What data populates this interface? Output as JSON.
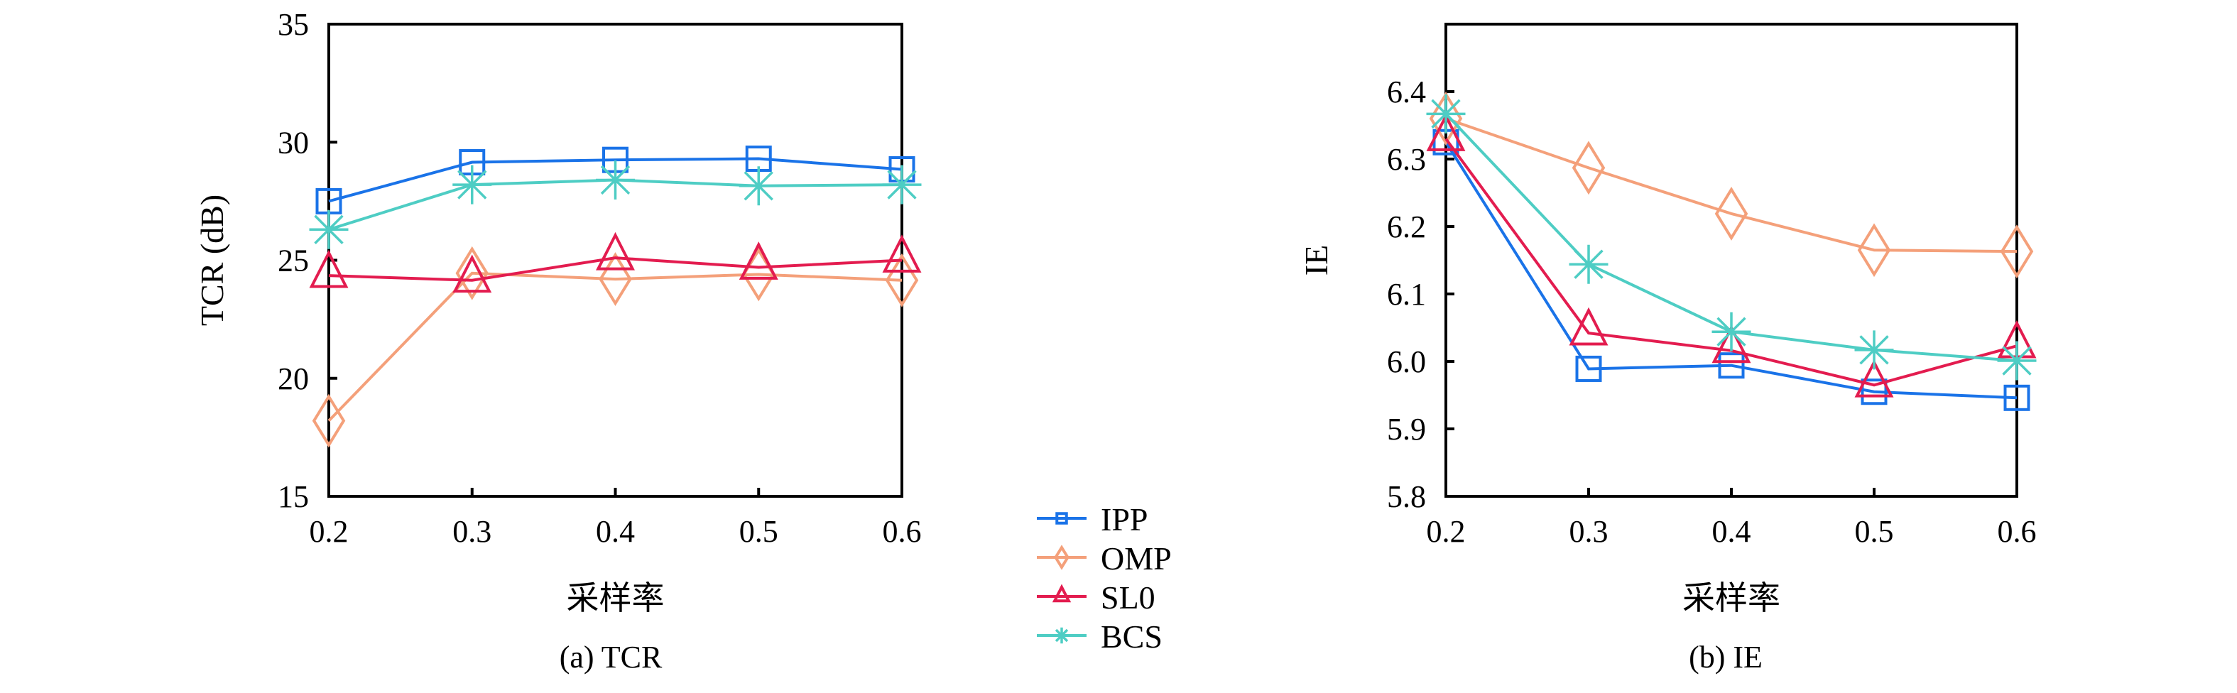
{
  "colors": {
    "IPP": "#1a73e8",
    "OMP": "#f4a07a",
    "SL0": "#e31c4f",
    "BCS": "#4ecdc4"
  },
  "legend": [
    "IPP",
    "OMP",
    "SL0",
    "BCS"
  ],
  "chart_data": [
    {
      "type": "line",
      "title": "(a) TCR",
      "xlabel": "采样率",
      "ylabel": "TCR (dB)",
      "x": [
        0.2,
        0.3,
        0.4,
        0.5,
        0.6
      ],
      "xticks": [
        "0.2",
        "0.3",
        "0.4",
        "0.5",
        "0.6"
      ],
      "yticks": [
        "15",
        "20",
        "25",
        "30",
        "35"
      ],
      "ylim": [
        15,
        35
      ],
      "xlim": [
        0.2,
        0.6
      ],
      "grid": false,
      "series": [
        {
          "name": "IPP",
          "marker": "square",
          "values": [
            27.5,
            29.15,
            29.25,
            29.3,
            28.85
          ]
        },
        {
          "name": "OMP",
          "marker": "diamond",
          "values": [
            18.2,
            24.45,
            24.2,
            24.4,
            24.15
          ]
        },
        {
          "name": "SL0",
          "marker": "triangle",
          "values": [
            24.35,
            24.15,
            25.1,
            24.7,
            25.0
          ]
        },
        {
          "name": "BCS",
          "marker": "asterisk",
          "values": [
            26.3,
            28.2,
            28.4,
            28.15,
            28.2
          ]
        }
      ]
    },
    {
      "type": "line",
      "title": "(b) IE",
      "xlabel": "采样率",
      "ylabel": "IE",
      "x": [
        0.2,
        0.3,
        0.4,
        0.5,
        0.6
      ],
      "xticks": [
        "0.2",
        "0.3",
        "0.4",
        "0.5",
        "0.6"
      ],
      "yticks": [
        "5.8",
        "5.9",
        "6.0",
        "6.1",
        "6.2",
        "6.3",
        "6.4"
      ],
      "ylim": [
        5.8,
        6.5
      ],
      "xlim": [
        0.2,
        0.6
      ],
      "grid": false,
      "series": [
        {
          "name": "IPP",
          "marker": "square",
          "values": [
            6.325,
            5.989,
            5.994,
            5.955,
            5.946
          ]
        },
        {
          "name": "OMP",
          "marker": "diamond",
          "values": [
            6.36,
            6.287,
            6.219,
            6.165,
            6.163
          ]
        },
        {
          "name": "SL0",
          "marker": "triangle",
          "values": [
            6.33,
            6.042,
            6.016,
            5.965,
            6.023
          ]
        },
        {
          "name": "BCS",
          "marker": "asterisk",
          "values": [
            6.367,
            6.144,
            6.044,
            6.017,
            6.001
          ]
        }
      ]
    }
  ]
}
